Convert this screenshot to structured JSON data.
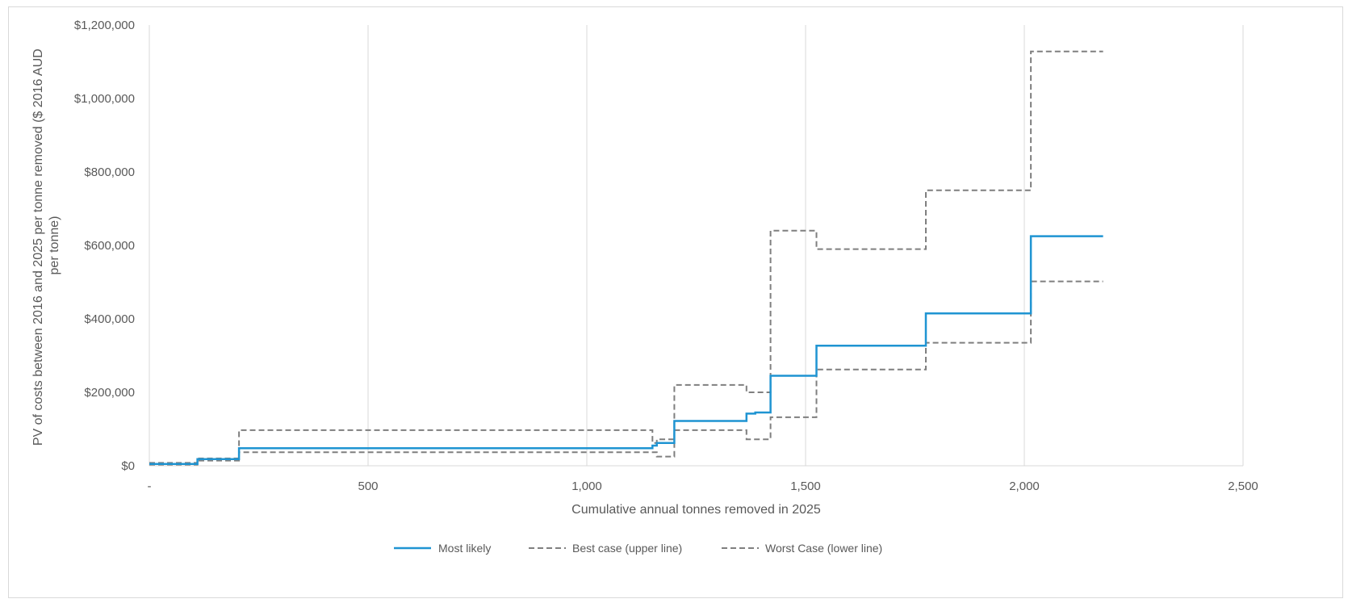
{
  "chart_data": {
    "type": "line",
    "title": "",
    "xlabel": "Cumulative annual tonnes removed in 2025",
    "ylabel_lines": [
      "PV of costs between 2016 and 2025 per tonne removed ($ 2016 AUD",
      "per tonne)"
    ],
    "xlim": [
      0,
      2500
    ],
    "ylim": [
      0,
      1200000
    ],
    "x_ticks": [
      0,
      500,
      1000,
      1500,
      2000,
      2500
    ],
    "x_tick_labels": [
      "-",
      "500",
      "1,000",
      "1,500",
      "2,000",
      "2,500"
    ],
    "y_ticks": [
      0,
      200000,
      400000,
      600000,
      800000,
      1000000,
      1200000
    ],
    "y_tick_labels": [
      "$0",
      "$200,000",
      "$400,000",
      "$600,000",
      "$800,000",
      "$1,000,000",
      "$1,200,000"
    ],
    "grid": "vertical",
    "legend_position": "bottom",
    "step": true,
    "series": [
      {
        "name": "Most likely",
        "color": "#1f94d2",
        "style": "solid",
        "x": [
          0,
          110,
          205,
          1150,
          1160,
          1200,
          1365,
          1385,
          1420,
          1525,
          1775,
          2015,
          2180
        ],
        "values": [
          5000,
          18000,
          48000,
          55000,
          62000,
          122000,
          142000,
          145000,
          245000,
          327000,
          415000,
          625000,
          625000
        ]
      },
      {
        "name": "Best case (upper line)",
        "color": "#7f7f7f",
        "style": "dashed",
        "x": [
          0,
          110,
          205,
          1150,
          1160,
          1200,
          1365,
          1420,
          1525,
          1775,
          2015,
          2180
        ],
        "values": [
          8000,
          20000,
          97000,
          62000,
          72000,
          220000,
          200000,
          640000,
          590000,
          750000,
          1128000,
          1128000
        ]
      },
      {
        "name": "Worst Case (lower line)",
        "color": "#7f7f7f",
        "style": "dashed",
        "x": [
          0,
          110,
          205,
          1150,
          1160,
          1200,
          1365,
          1420,
          1525,
          1775,
          2015,
          2180
        ],
        "values": [
          3000,
          14000,
          37000,
          37000,
          25000,
          97000,
          72000,
          132000,
          262000,
          335000,
          502000,
          502000
        ]
      }
    ]
  }
}
